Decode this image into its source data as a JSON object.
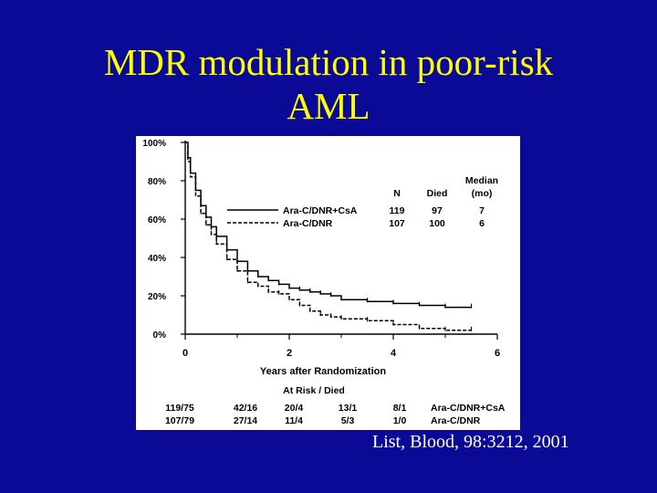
{
  "slide": {
    "title_line1": "MDR modulation in poor-risk",
    "title_line2": "AML",
    "citation": "List, Blood, 98:3212, 2001",
    "background_color": "#0a0a96",
    "title_color": "#ffff00",
    "citation_color": "#ffffff"
  },
  "chart_data": {
    "type": "line",
    "subtype": "kaplan-meier survival curve",
    "title": "",
    "xlabel": "Years after Randomization",
    "ylabel": "",
    "xlim": [
      0,
      6
    ],
    "ylim": [
      0,
      100
    ],
    "x_ticks": [
      "0",
      "2",
      "4",
      "6"
    ],
    "y_ticks": [
      "0%",
      "20%",
      "40%",
      "60%",
      "80%",
      "100%"
    ],
    "grid": false,
    "legend": {
      "placement": "top-right",
      "header": {
        "n": "N",
        "died": "Died",
        "median_line1": "Median",
        "median_line2": "(mo)"
      },
      "entries": [
        {
          "label": "Ara-C/DNR+CsA",
          "n": "119",
          "died": "97",
          "median": "7",
          "style": "solid"
        },
        {
          "label": "Ara-C/DNR",
          "n": "107",
          "died": "100",
          "median": "6",
          "style": "dashed"
        }
      ]
    },
    "series": [
      {
        "name": "Ara-C/DNR+CsA",
        "style": "solid",
        "x": [
          0,
          0.05,
          0.1,
          0.2,
          0.3,
          0.4,
          0.5,
          0.6,
          0.8,
          1.0,
          1.2,
          1.4,
          1.6,
          1.8,
          2.0,
          2.2,
          2.4,
          2.6,
          2.8,
          3.0,
          3.5,
          4.0,
          4.5,
          5.0,
          5.5
        ],
        "y": [
          100,
          92,
          84,
          75,
          67,
          61,
          56,
          51,
          44,
          38,
          33,
          30,
          28,
          26,
          24,
          23,
          22,
          21,
          20,
          18,
          17,
          16,
          15,
          14,
          14
        ]
      },
      {
        "name": "Ara-C/DNR",
        "style": "dashed",
        "x": [
          0,
          0.05,
          0.1,
          0.2,
          0.3,
          0.4,
          0.5,
          0.6,
          0.8,
          1.0,
          1.2,
          1.4,
          1.6,
          1.8,
          2.0,
          2.2,
          2.4,
          2.6,
          2.8,
          3.0,
          3.5,
          4.0,
          4.5,
          5.0,
          5.5
        ],
        "y": [
          100,
          90,
          82,
          72,
          63,
          57,
          52,
          47,
          39,
          33,
          27,
          25,
          22,
          21,
          18,
          15,
          12,
          10,
          9,
          8,
          7,
          5,
          3,
          2,
          2
        ]
      }
    ],
    "at_risk": {
      "title": "At Risk / Died",
      "rows": [
        {
          "label": "Ara-C/DNR+CsA",
          "values": [
            "119/75",
            "42/16",
            "20/4",
            "13/1",
            "8/1"
          ]
        },
        {
          "label": "Ara-C/DNR",
          "values": [
            "107/79",
            "27/14",
            "11/4",
            "5/3",
            "1/0"
          ]
        }
      ]
    }
  }
}
